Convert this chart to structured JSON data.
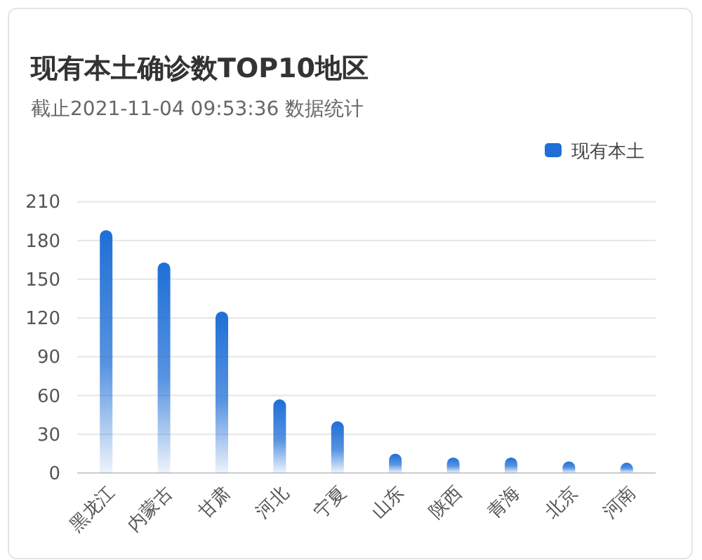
{
  "chart_data": {
    "type": "bar",
    "title": "现有本土确诊数TOP10地区",
    "subtitle": "截止2021-11-04 09:53:36 数据统计",
    "categories": [
      "黑龙江",
      "内蒙古",
      "甘肃",
      "河北",
      "宁夏",
      "山东",
      "陕西",
      "青海",
      "北京",
      "河南"
    ],
    "series": [
      {
        "name": "现有本土",
        "color": "#1f6fd6",
        "values": [
          188,
          163,
          125,
          57,
          40,
          15,
          12,
          12,
          9,
          8
        ]
      }
    ],
    "ylim": [
      0,
      210
    ],
    "yticks": [
      0,
      30,
      60,
      90,
      120,
      150,
      180,
      210
    ],
    "grid": "y",
    "legend": "top right"
  }
}
